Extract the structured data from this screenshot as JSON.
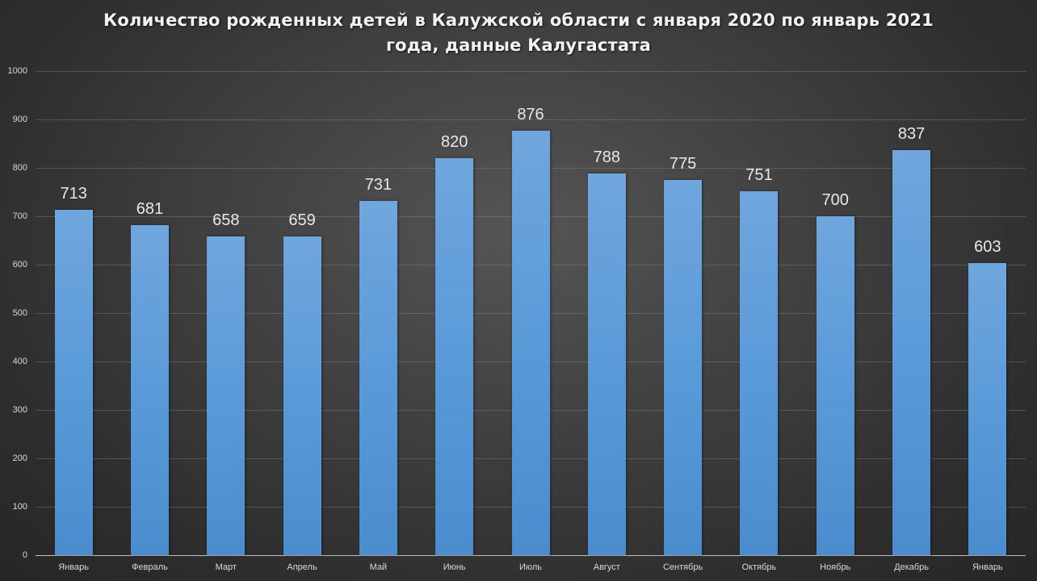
{
  "chart_data": {
    "type": "bar",
    "title": "Количество рожденных детей в Калужской области с января 2020 по январь 2021 года, данные Калугастата",
    "title_lines": [
      "Количество  рожденных  детей в Калужской  области  с января  2020 по январь  2021",
      "года, данные  Калугастата"
    ],
    "categories": [
      "Январь",
      "Февраль",
      "Март",
      "Апрель",
      "Май",
      "Июнь",
      "Июль",
      "Август",
      "Сентябрь",
      "Октябрь",
      "Ноябрь",
      "Декабрь",
      "Январь"
    ],
    "values": [
      713,
      681,
      658,
      659,
      731,
      820,
      876,
      788,
      775,
      751,
      700,
      837,
      603
    ],
    "xlabel": "",
    "ylabel": "",
    "ylim": [
      0,
      1000
    ],
    "yticks": [
      0,
      100,
      200,
      300,
      400,
      500,
      600,
      700,
      800,
      900,
      1000
    ],
    "grid": true,
    "legend": null,
    "data_labels": true,
    "colors": {
      "bar": "#5b9bd5",
      "background": "#3a3a3a",
      "text": "#e8e8e8"
    }
  }
}
